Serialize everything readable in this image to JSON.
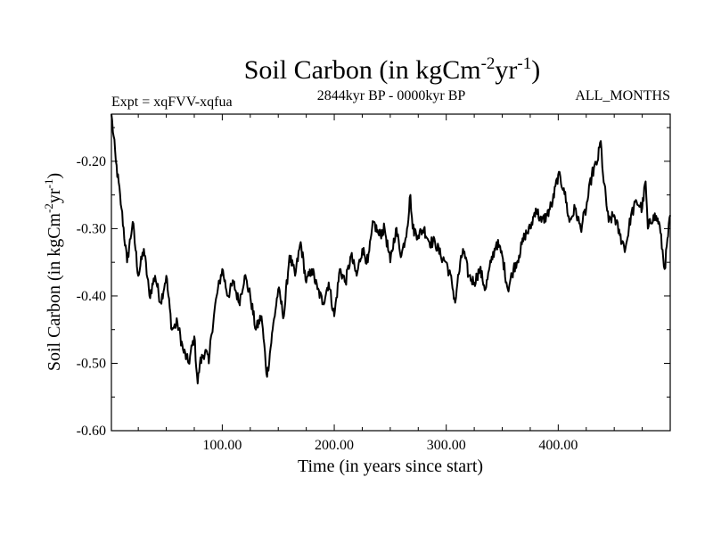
{
  "chart_data": {
    "type": "line",
    "title": {
      "main": "Soil Carbon (in kgCm",
      "sup1": "-2",
      "mid": "yr",
      "sup2": "-1",
      "end": ")"
    },
    "subtitle_left": "Expt = xqFVV-xqfua",
    "subtitle_center": "2844kyr BP - 0000kyr BP",
    "subtitle_right": "ALL_MONTHS",
    "xlabel": "Time (in years since start)",
    "ylabel": {
      "main": "Soil Carbon (in kgCm",
      "sup1": "-2",
      "mid": "yr",
      "sup2": "-1",
      "end": ")"
    },
    "xlim": [
      1,
      500
    ],
    "ylim": [
      -0.6,
      -0.13
    ],
    "x_ticks": [
      100,
      200,
      300,
      400
    ],
    "x_tick_labels": [
      "100.00",
      "200.00",
      "300.00",
      "400.00"
    ],
    "y_ticks": [
      -0.6,
      -0.5,
      -0.4,
      -0.3,
      -0.2
    ],
    "y_tick_labels": [
      "-0.60",
      "-0.50",
      "-0.40",
      "-0.30",
      "-0.20"
    ],
    "line_color": "#000000",
    "series": [
      {
        "name": "Soil Carbon",
        "x": [
          1,
          5,
          10,
          15,
          20,
          25,
          30,
          35,
          40,
          45,
          50,
          55,
          60,
          65,
          70,
          75,
          78,
          80,
          85,
          88,
          90,
          95,
          100,
          105,
          110,
          115,
          120,
          125,
          130,
          135,
          140,
          145,
          150,
          155,
          160,
          165,
          170,
          175,
          180,
          185,
          190,
          195,
          200,
          205,
          210,
          215,
          220,
          225,
          230,
          235,
          240,
          245,
          250,
          255,
          260,
          265,
          268,
          270,
          275,
          280,
          285,
          290,
          295,
          300,
          305,
          308,
          310,
          315,
          320,
          325,
          330,
          335,
          340,
          345,
          350,
          355,
          360,
          365,
          370,
          375,
          380,
          385,
          390,
          395,
          400,
          405,
          410,
          415,
          420,
          425,
          430,
          435,
          438,
          440,
          445,
          450,
          455,
          460,
          465,
          470,
          475,
          478,
          480,
          485,
          490,
          495,
          500
        ],
        "values": [
          -0.13,
          -0.2,
          -0.27,
          -0.35,
          -0.29,
          -0.37,
          -0.33,
          -0.4,
          -0.37,
          -0.41,
          -0.37,
          -0.45,
          -0.44,
          -0.48,
          -0.5,
          -0.46,
          -0.53,
          -0.5,
          -0.48,
          -0.5,
          -0.46,
          -0.4,
          -0.36,
          -0.4,
          -0.38,
          -0.41,
          -0.37,
          -0.4,
          -0.45,
          -0.43,
          -0.52,
          -0.45,
          -0.39,
          -0.43,
          -0.34,
          -0.37,
          -0.32,
          -0.38,
          -0.36,
          -0.39,
          -0.41,
          -0.38,
          -0.43,
          -0.36,
          -0.38,
          -0.34,
          -0.37,
          -0.33,
          -0.35,
          -0.29,
          -0.31,
          -0.3,
          -0.35,
          -0.3,
          -0.34,
          -0.3,
          -0.25,
          -0.3,
          -0.31,
          -0.3,
          -0.32,
          -0.32,
          -0.34,
          -0.35,
          -0.38,
          -0.41,
          -0.38,
          -0.33,
          -0.37,
          -0.38,
          -0.36,
          -0.39,
          -0.35,
          -0.32,
          -0.34,
          -0.39,
          -0.36,
          -0.34,
          -0.31,
          -0.3,
          -0.27,
          -0.29,
          -0.28,
          -0.26,
          -0.22,
          -0.24,
          -0.29,
          -0.27,
          -0.3,
          -0.27,
          -0.22,
          -0.2,
          -0.17,
          -0.22,
          -0.29,
          -0.28,
          -0.31,
          -0.33,
          -0.28,
          -0.26,
          -0.27,
          -0.23,
          -0.3,
          -0.28,
          -0.29,
          -0.36,
          -0.28
        ]
      }
    ]
  }
}
